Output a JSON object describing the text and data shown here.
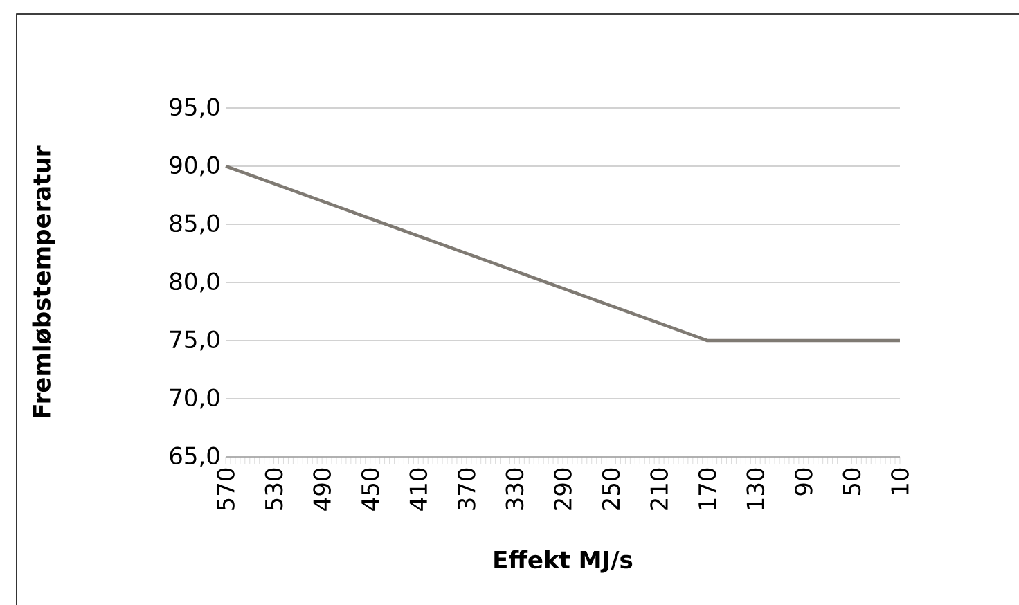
{
  "chart_data": {
    "type": "line",
    "xlabel": "Effekt MJ/s",
    "ylabel": "Fremløbstemperatur",
    "x": [
      570,
      170,
      10
    ],
    "series": [
      {
        "color": "#7f7a73",
        "values": [
          90,
          75,
          75
        ]
      }
    ],
    "xlim": [
      570,
      10
    ],
    "xticks": [
      570,
      530,
      490,
      450,
      410,
      370,
      330,
      290,
      250,
      210,
      170,
      130,
      90,
      50,
      10
    ],
    "ylim": [
      65,
      95
    ],
    "yticks": [
      {
        "value": 65,
        "label": "65,0"
      },
      {
        "value": 70,
        "label": "70,0"
      },
      {
        "value": 75,
        "label": "75,0"
      },
      {
        "value": 80,
        "label": "80,0"
      },
      {
        "value": 85,
        "label": "85,0"
      },
      {
        "value": 90,
        "label": "90,0"
      },
      {
        "value": 95,
        "label": "95,0"
      }
    ],
    "grid": "y",
    "marker": "none",
    "line_style": "solid"
  }
}
